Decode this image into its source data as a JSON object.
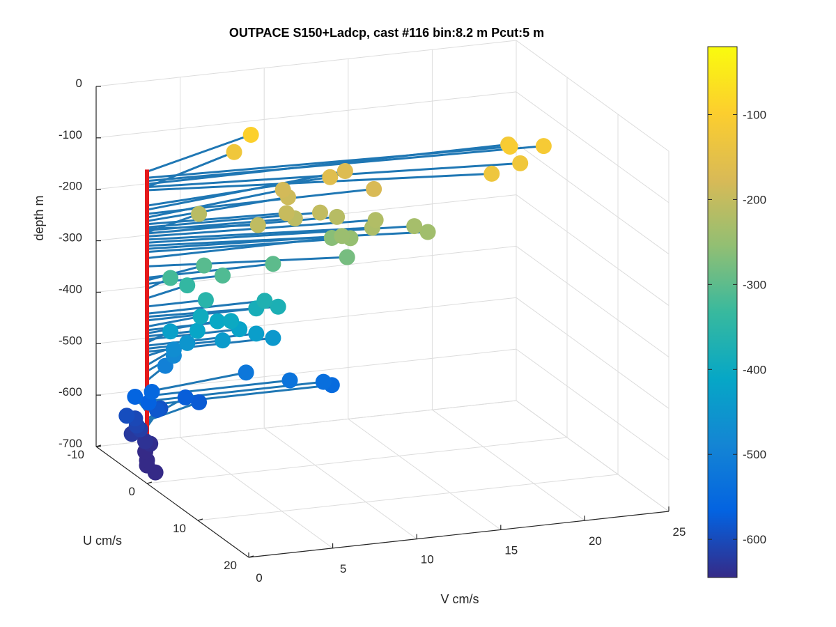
{
  "chart_data": {
    "type": "scatter",
    "title": "OUTPACE S150+Ladcp, cast #116 bin:8.2 m  Pcut:5 m",
    "xlabel": "U cm/s",
    "ylabel": "V cm/s",
    "zlabel": "depth m",
    "xlim": [
      -10,
      20
    ],
    "ylim": [
      0,
      25
    ],
    "zlim": [
      -700,
      0
    ],
    "x_ticks": [
      "-10",
      "0",
      "10",
      "20"
    ],
    "y_ticks": [
      "0",
      "5",
      "10",
      "15",
      "20",
      "25"
    ],
    "z_ticks": [
      "0",
      "-100",
      "-200",
      "-300",
      "-400",
      "-500",
      "-600",
      "-700"
    ],
    "grid": true,
    "view": "3d",
    "marker_color_by": "depth",
    "stick_color": "#1f77b4",
    "origin_line_color": "#e41a1c",
    "colorbar": {
      "position": "right",
      "range": [
        -645,
        -20
      ],
      "ticks": [
        "-100",
        "-200",
        "-300",
        "-400",
        "-500",
        "-600"
      ],
      "tick_values": [
        -100,
        -200,
        -300,
        -400,
        -500,
        -600
      ],
      "colormap": "parula"
    },
    "points": [
      {
        "z": -94,
        "u": -6,
        "v": 8
      },
      {
        "z": -106,
        "u": 2,
        "v": 21
      },
      {
        "z": -112,
        "u": 2,
        "v": 23
      },
      {
        "z": -118,
        "u": 0,
        "v": 21.5
      },
      {
        "z": -124,
        "u": 4,
        "v": 21
      },
      {
        "z": -130,
        "u": 5,
        "v": 19
      },
      {
        "z": -124,
        "u": -6,
        "v": 7
      },
      {
        "z": -160,
        "u": -2,
        "v": 11.5
      },
      {
        "z": -168,
        "u": -4,
        "v": 13
      },
      {
        "z": -176,
        "u": 0,
        "v": 13.5
      },
      {
        "z": -183,
        "u": -3,
        "v": 9
      },
      {
        "z": -190,
        "u": -2,
        "v": 9
      },
      {
        "z": -196,
        "u": 1,
        "v": 8
      },
      {
        "z": -202,
        "u": 1,
        "v": 10
      },
      {
        "z": -208,
        "u": 1,
        "v": 8.5
      },
      {
        "z": -214,
        "u": 1,
        "v": 11
      },
      {
        "z": -220,
        "u": 2,
        "v": 13
      },
      {
        "z": -226,
        "u": 3,
        "v": 12.5
      },
      {
        "z": -212,
        "u": -3,
        "v": 4
      },
      {
        "z": -205,
        "u": 2,
        "v": 6
      },
      {
        "z": -232,
        "u": 3,
        "v": 15
      },
      {
        "z": -238,
        "u": 4,
        "v": 15.5
      },
      {
        "z": -244,
        "u": 2,
        "v": 11
      },
      {
        "z": -250,
        "u": 2,
        "v": 11.5
      },
      {
        "z": -262,
        "u": 0,
        "v": 11
      },
      {
        "z": -278,
        "u": 3,
        "v": 11
      },
      {
        "z": -300,
        "u": 0,
        "v": 7.5
      },
      {
        "z": -305,
        "u": -2,
        "v": 4
      },
      {
        "z": -312,
        "u": 0,
        "v": 4.5
      },
      {
        "z": -322,
        "u": -2,
        "v": 2
      },
      {
        "z": -340,
        "u": -2,
        "v": 3
      },
      {
        "z": -356,
        "u": 0,
        "v": 3.5
      },
      {
        "z": -370,
        "u": 0,
        "v": 7
      },
      {
        "z": -376,
        "u": 1,
        "v": 7.5
      },
      {
        "z": -383,
        "u": 0,
        "v": 6.5
      },
      {
        "z": -395,
        "u": -1,
        "v": 3.5
      },
      {
        "z": -402,
        "u": 0,
        "v": 5
      },
      {
        "z": -408,
        "u": -1,
        "v": 4.5
      },
      {
        "z": -414,
        "u": 0,
        "v": 3
      },
      {
        "z": -420,
        "u": 0,
        "v": 5.5
      },
      {
        "z": -426,
        "u": -2,
        "v": 2
      },
      {
        "z": -432,
        "u": 0,
        "v": 6.5
      },
      {
        "z": -438,
        "u": 0,
        "v": 4.5
      },
      {
        "z": -444,
        "u": 0,
        "v": 7.5
      },
      {
        "z": -452,
        "u": -2,
        "v": 3
      },
      {
        "z": -470,
        "u": -3,
        "v": 2.5
      },
      {
        "z": -482,
        "u": -3,
        "v": 2.5
      },
      {
        "z": -500,
        "u": -3,
        "v": 2
      },
      {
        "z": -522,
        "u": -2,
        "v": 6.5
      },
      {
        "z": -530,
        "u": 0,
        "v": 8.5
      },
      {
        "z": -540,
        "u": 0,
        "v": 10.5
      },
      {
        "z": -548,
        "u": 0,
        "v": 11
      },
      {
        "z": -556,
        "u": -4,
        "v": 1.5
      },
      {
        "z": -562,
        "u": -4,
        "v": 0.5
      },
      {
        "z": -568,
        "u": -3,
        "v": 1
      },
      {
        "z": -574,
        "u": -4,
        "v": 3.5
      },
      {
        "z": -578,
        "u": -3,
        "v": 4
      },
      {
        "z": -584,
        "u": -3,
        "v": 1.5
      },
      {
        "z": -590,
        "u": -4,
        "v": 2
      },
      {
        "z": -597,
        "u": -4,
        "v": 0
      },
      {
        "z": -604,
        "u": -4,
        "v": 0.5
      },
      {
        "z": -610,
        "u": -3,
        "v": 0.3
      },
      {
        "z": -618,
        "u": -3,
        "v": 0.5
      },
      {
        "z": -625,
        "u": -3,
        "v": 0
      },
      {
        "z": -634,
        "u": -2,
        "v": 0.5
      },
      {
        "z": -640,
        "u": -2,
        "v": 0.8
      },
      {
        "z": -646,
        "u": -1,
        "v": 0.2
      },
      {
        "z": -655,
        "u": 0,
        "v": 0
      },
      {
        "z": -665,
        "u": 0,
        "v": 0
      },
      {
        "z": -672,
        "u": 1,
        "v": 0.2
      }
    ]
  }
}
